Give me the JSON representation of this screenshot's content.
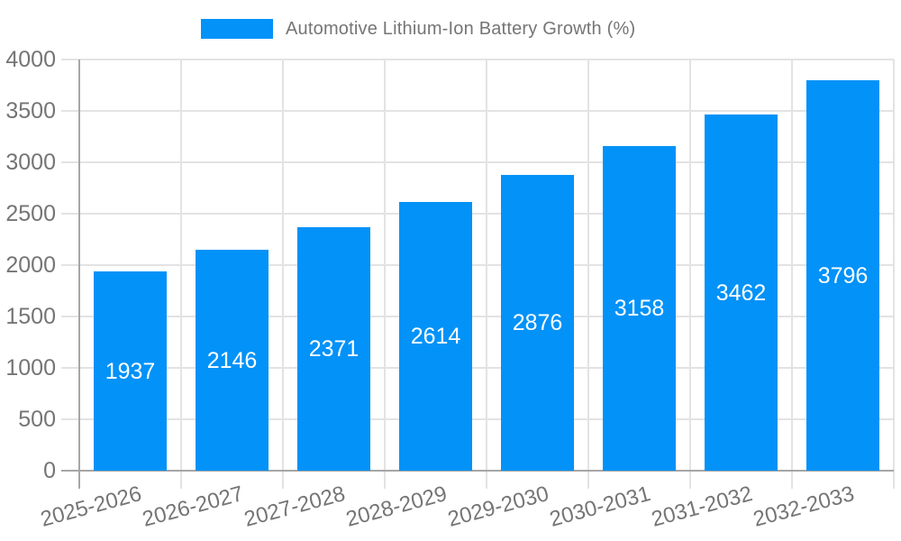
{
  "legend": {
    "label": "Automotive Lithium-Ion Battery Growth (%)",
    "position": "top"
  },
  "chart_data": {
    "type": "bar",
    "title": "Automotive Lithium-Ion Battery Growth (%)",
    "categories": [
      "2025-2026",
      "2026-2027",
      "2027-2028",
      "2028-2029",
      "2029-2030",
      "2030-2031",
      "2031-2032",
      "2032-2033"
    ],
    "series": [
      {
        "name": "Automotive Lithium-Ion Battery Growth (%)",
        "values": [
          1937,
          2146,
          2371,
          2614,
          2876,
          3158,
          3462,
          3796
        ]
      }
    ],
    "show_value_labels": true,
    "xlabel": "",
    "ylabel": "",
    "ylim": [
      0,
      4000
    ],
    "yticks": [
      0,
      500,
      1000,
      1500,
      2000,
      2500,
      3000,
      3500,
      4000
    ],
    "grid": true,
    "legend_position": "top",
    "x_tick_rotation_deg": -15
  },
  "colors": {
    "bar": "#0292f8",
    "grid": "#e3e3e3",
    "axis": "#a6a6a6",
    "tick_text": "#757575",
    "legend_text": "#757575",
    "value_label_text": "#ffffff",
    "background": "#ffffff"
  }
}
